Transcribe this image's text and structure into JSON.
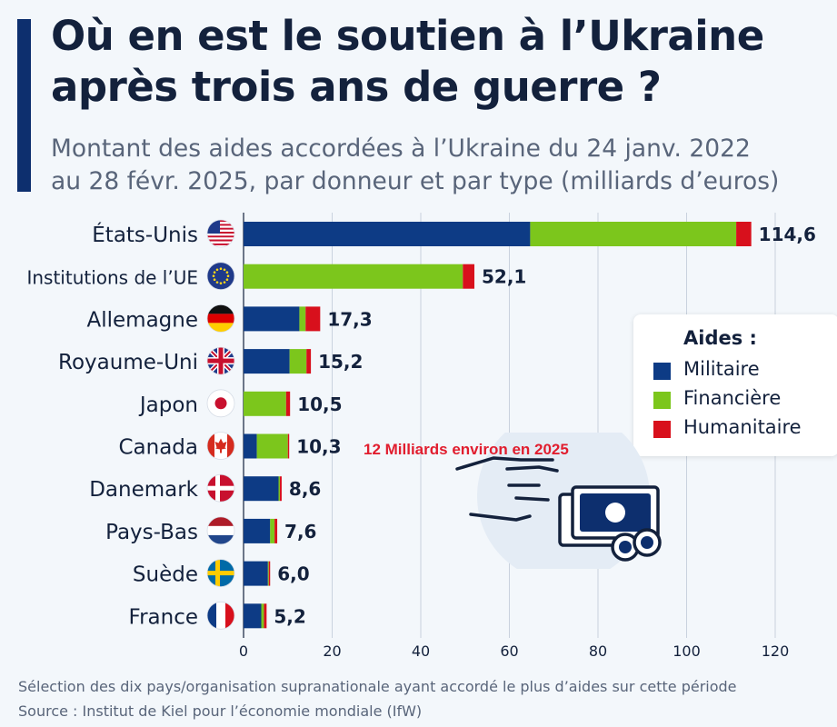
{
  "header": {
    "title_line1": "Où en est le soutien à l’Ukraine",
    "title_line2": "après trois ans de guerre ?",
    "subtitle_line1": "Montant des aides accordées à l’Ukraine du 24 janv. 2022",
    "subtitle_line2": "au 28 févr. 2025, par donneur et par type (milliards d’euros)"
  },
  "legend": {
    "title": "Aides :",
    "items": [
      {
        "label": "Militaire",
        "color": "#0d3b85"
      },
      {
        "label": "Financière",
        "color": "#7cc61c"
      },
      {
        "label": "Humanitaire",
        "color": "#d8101c"
      }
    ]
  },
  "annotation": "12 Milliards environ en 2025",
  "footer": {
    "note": "Sélection des dix pays/organisation supranationale ayant accordé le plus d’aides sur cette période",
    "source": "Source : Institut de Kiel pour l’économie mondiale (IfW)"
  },
  "chart_data": {
    "type": "bar",
    "orientation": "horizontal",
    "stacked": true,
    "categories": [
      "États-Unis",
      "Institutions de l’UE",
      "Allemagne",
      "Royaume-Uni",
      "Japon",
      "Canada",
      "Danemark",
      "Pays-Bas",
      "Suède",
      "France"
    ],
    "flags": [
      "us-flag-icon",
      "eu-flag-icon",
      "germany-flag-icon",
      "uk-flag-icon",
      "japan-flag-icon",
      "canada-flag-icon",
      "denmark-flag-icon",
      "netherlands-flag-icon",
      "sweden-flag-icon",
      "france-flag-icon"
    ],
    "totals_labels": [
      "114,6",
      "52,1",
      "17,3",
      "15,2",
      "10,5",
      "10,3",
      "8,6",
      "7,6",
      "6,0",
      "5,2"
    ],
    "series": [
      {
        "name": "Militaire",
        "color": "#0d3b85",
        "values": [
          64.7,
          0,
          12.6,
          10.4,
          0,
          3.0,
          7.9,
          6.0,
          5.5,
          4.0
        ]
      },
      {
        "name": "Financière",
        "color": "#7cc61c",
        "values": [
          46.5,
          49.5,
          1.4,
          3.8,
          9.6,
          7.0,
          0.3,
          1.0,
          0.2,
          0.6
        ]
      },
      {
        "name": "Humanitaire",
        "color": "#d8101c",
        "values": [
          3.4,
          2.6,
          3.3,
          1.0,
          0.9,
          0.3,
          0.4,
          0.6,
          0.3,
          0.6
        ]
      }
    ],
    "x_ticks": [
      0,
      20,
      40,
      60,
      80,
      100,
      120
    ],
    "xlim": [
      0,
      120
    ],
    "grid": true
  }
}
